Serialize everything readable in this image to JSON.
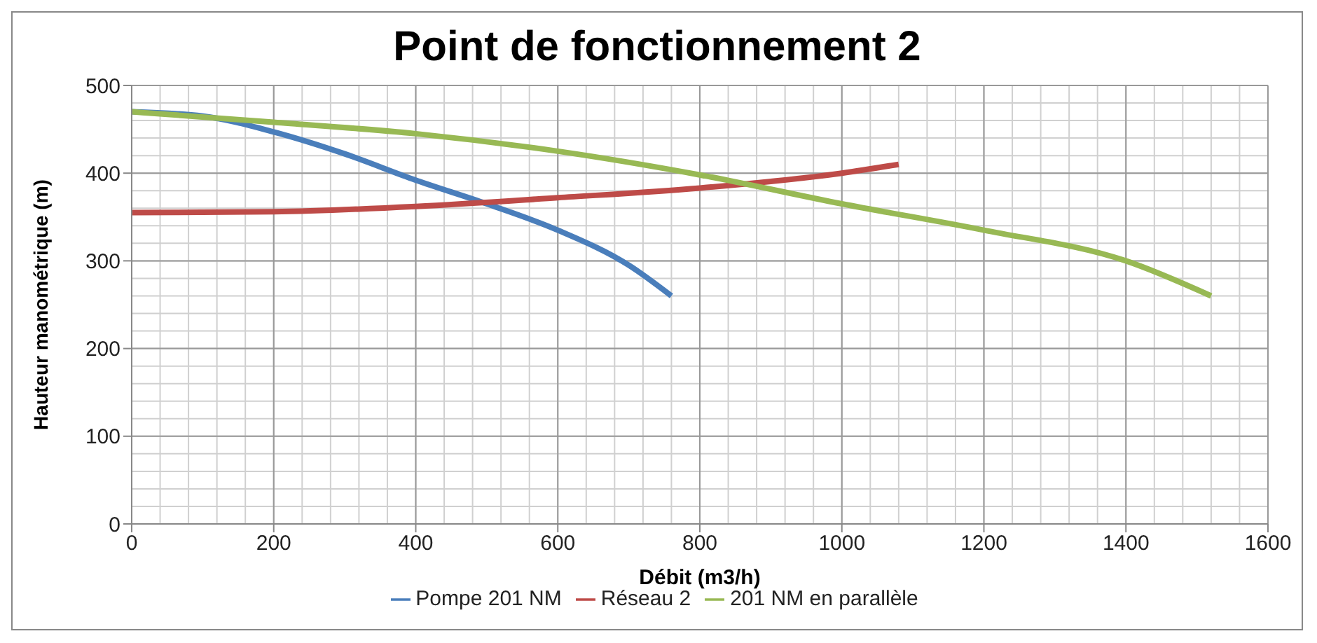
{
  "chart_data": {
    "type": "line",
    "title": "Point de fonctionnement 2",
    "xlabel": "Débit (m3/h)",
    "ylabel": "Hauteur manométrique (m)",
    "xlim": [
      0,
      1600
    ],
    "xticks": [
      0,
      200,
      400,
      600,
      800,
      1000,
      1200,
      1400,
      1600
    ],
    "ylim": [
      0,
      500
    ],
    "yticks": [
      0,
      100,
      200,
      300,
      400,
      500
    ],
    "grid": true,
    "legend": "bottom",
    "marker": "none",
    "line_style": "solid",
    "series": [
      {
        "name": "Pompe 201 NM",
        "color": "#4a7ebb",
        "x": [
          0,
          100,
          200,
          300,
          400,
          500,
          600,
          700,
          760
        ],
        "values": [
          470,
          465,
          447,
          422,
          392,
          365,
          335,
          295,
          260
        ]
      },
      {
        "name": "Réseau 2",
        "color": "#be4b48",
        "x": [
          0,
          200,
          400,
          600,
          800,
          1000,
          1080
        ],
        "values": [
          355,
          356,
          362,
          372,
          383,
          400,
          410
        ]
      },
      {
        "name": "201 NM en parallèle",
        "color": "#98b954",
        "x": [
          0,
          200,
          400,
          600,
          800,
          1000,
          1200,
          1400,
          1520
        ],
        "values": [
          470,
          458,
          445,
          425,
          398,
          365,
          335,
          300,
          260
        ]
      }
    ]
  }
}
